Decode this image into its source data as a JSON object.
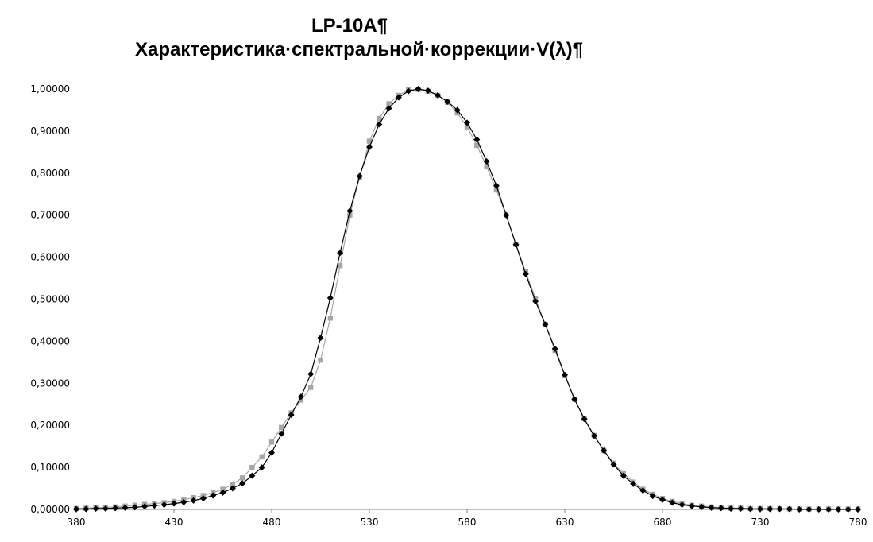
{
  "chart_data": {
    "type": "line",
    "title": "LP-10A¶",
    "subtitle": "Характеристика·спектральной·коррекции·V(λ)¶",
    "xlabel": "",
    "ylabel": "",
    "xlim": [
      380,
      780
    ],
    "ylim": [
      0,
      1
    ],
    "x_ticks": [
      "380",
      "430",
      "480",
      "530",
      "580",
      "630",
      "680",
      "730",
      "780"
    ],
    "y_ticks": [
      "0,00000",
      "0,10000",
      "0,20000",
      "0,30000",
      "0,40000",
      "0,50000",
      "0,60000",
      "0,70000",
      "0,80000",
      "0,90000",
      "1,00000"
    ],
    "grid": false,
    "legend": "none",
    "series": [
      {
        "color": "#000000",
        "marker": "diamond",
        "x": [
          380,
          385,
          390,
          395,
          400,
          405,
          410,
          415,
          420,
          425,
          430,
          435,
          440,
          445,
          450,
          455,
          460,
          465,
          470,
          475,
          480,
          485,
          490,
          495,
          500,
          505,
          510,
          515,
          520,
          525,
          530,
          535,
          540,
          545,
          550,
          555,
          560,
          565,
          570,
          575,
          580,
          585,
          590,
          595,
          600,
          605,
          610,
          615,
          620,
          625,
          630,
          635,
          640,
          645,
          650,
          655,
          660,
          665,
          670,
          675,
          680,
          685,
          690,
          695,
          700,
          705,
          710,
          715,
          720,
          725,
          730,
          735,
          740,
          745,
          750,
          755,
          760,
          765,
          770,
          775,
          780
        ],
        "y": [
          0.001,
          0.001,
          0.002,
          0.002,
          0.003,
          0.004,
          0.005,
          0.007,
          0.009,
          0.011,
          0.014,
          0.017,
          0.021,
          0.026,
          0.033,
          0.04,
          0.05,
          0.062,
          0.08,
          0.1,
          0.135,
          0.18,
          0.225,
          0.268,
          0.322,
          0.408,
          0.503,
          0.61,
          0.71,
          0.793,
          0.862,
          0.916,
          0.954,
          0.98,
          0.995,
          1.0,
          0.996,
          0.985,
          0.97,
          0.95,
          0.92,
          0.88,
          0.828,
          0.77,
          0.7,
          0.63,
          0.56,
          0.495,
          0.44,
          0.382,
          0.32,
          0.262,
          0.215,
          0.175,
          0.14,
          0.107,
          0.08,
          0.061,
          0.045,
          0.032,
          0.023,
          0.016,
          0.011,
          0.008,
          0.006,
          0.004,
          0.003,
          0.002,
          0.002,
          0.001,
          0.001,
          0.001,
          0.001,
          0.001,
          0.0,
          0.0,
          0.0,
          0.0,
          0.0,
          0.0,
          0.0
        ]
      },
      {
        "color": "#a6a6a6",
        "marker": "square",
        "x": [
          380,
          385,
          390,
          395,
          400,
          405,
          410,
          415,
          420,
          425,
          430,
          435,
          440,
          445,
          450,
          455,
          460,
          465,
          470,
          475,
          480,
          485,
          490,
          495,
          500,
          505,
          510,
          515,
          520,
          525,
          530,
          535,
          540,
          545,
          550,
          555,
          560,
          565,
          570,
          575,
          580,
          585,
          590,
          595,
          600,
          605,
          610,
          615,
          620,
          625,
          630,
          635,
          640,
          645,
          650,
          655,
          660,
          665,
          670,
          675,
          680,
          685,
          690,
          695,
          700,
          705,
          710,
          715,
          720,
          725,
          730,
          735,
          740,
          745,
          750,
          755,
          760,
          765,
          770,
          775,
          780
        ],
        "y": [
          0.002,
          0.003,
          0.004,
          0.005,
          0.006,
          0.008,
          0.01,
          0.012,
          0.014,
          0.016,
          0.019,
          0.023,
          0.028,
          0.033,
          0.04,
          0.048,
          0.06,
          0.075,
          0.1,
          0.125,
          0.16,
          0.195,
          0.23,
          0.26,
          0.29,
          0.355,
          0.455,
          0.58,
          0.7,
          0.79,
          0.876,
          0.93,
          0.965,
          0.985,
          0.998,
          0.999,
          0.995,
          0.985,
          0.968,
          0.943,
          0.91,
          0.866,
          0.815,
          0.76,
          0.7,
          0.63,
          0.565,
          0.502,
          0.44,
          0.378,
          0.318,
          0.262,
          0.216,
          0.176,
          0.14,
          0.11,
          0.085,
          0.065,
          0.048,
          0.036,
          0.026,
          0.019,
          0.014,
          0.01,
          0.008,
          0.006,
          0.004,
          0.003,
          0.003,
          0.002,
          0.002,
          0.002,
          0.002,
          0.001,
          0.001,
          0.001,
          0.001,
          0.001,
          0.001,
          0.001,
          0.001
        ]
      }
    ]
  }
}
